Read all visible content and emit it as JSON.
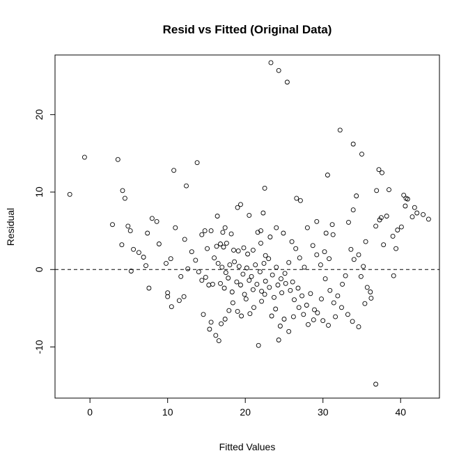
{
  "chart_data": {
    "type": "scatter",
    "title": "Resid vs Fitted (Original Data)",
    "xlabel": "Fitted Values",
    "ylabel": "Residual",
    "xlim": [
      -4.5,
      45
    ],
    "ylim": [
      -16.6,
      27.7
    ],
    "xticks": [
      0,
      10,
      20,
      30,
      40
    ],
    "yticks": [
      -10,
      0,
      10,
      20
    ],
    "reference_line": {
      "y": 0,
      "style": "dashed"
    },
    "grid": false,
    "legend": "none",
    "marker": "open-circle",
    "points": [
      [
        -2.6,
        9.7
      ],
      [
        -0.7,
        14.5
      ],
      [
        3.6,
        14.2
      ],
      [
        4.2,
        10.2
      ],
      [
        4.5,
        9.2
      ],
      [
        2.9,
        5.8
      ],
      [
        4.1,
        3.2
      ],
      [
        4.9,
        5.6
      ],
      [
        5.2,
        5.0
      ],
      [
        5.6,
        2.6
      ],
      [
        6.3,
        2.2
      ],
      [
        6.9,
        1.6
      ],
      [
        7.2,
        0.5
      ],
      [
        5.3,
        -0.2
      ],
      [
        7.6,
        -2.4
      ],
      [
        8.0,
        6.6
      ],
      [
        8.6,
        6.2
      ],
      [
        8.9,
        3.3
      ],
      [
        7.4,
        4.7
      ],
      [
        9.8,
        0.8
      ],
      [
        10.0,
        -3.0
      ],
      [
        10.0,
        -3.5
      ],
      [
        10.5,
        -4.8
      ],
      [
        10.4,
        1.4
      ],
      [
        10.8,
        12.8
      ],
      [
        12.4,
        10.8
      ],
      [
        13.8,
        13.8
      ],
      [
        11.0,
        5.4
      ],
      [
        11.7,
        -0.9
      ],
      [
        11.5,
        -4.0
      ],
      [
        12.1,
        -3.5
      ],
      [
        12.6,
        0.1
      ],
      [
        13.1,
        2.3
      ],
      [
        12.2,
        3.9
      ],
      [
        13.6,
        1.2
      ],
      [
        14.4,
        4.5
      ],
      [
        14.8,
        5.0
      ],
      [
        15.1,
        2.7
      ],
      [
        14.0,
        -0.3
      ],
      [
        14.4,
        -1.4
      ],
      [
        14.9,
        -1.0
      ],
      [
        15.3,
        -2.0
      ],
      [
        15.8,
        -1.9
      ],
      [
        14.6,
        -5.8
      ],
      [
        15.6,
        -6.8
      ],
      [
        15.4,
        -7.7
      ],
      [
        16.2,
        -8.5
      ],
      [
        16.6,
        -9.2
      ],
      [
        16.9,
        -7.0
      ],
      [
        17.4,
        -6.4
      ],
      [
        17.9,
        -5.3
      ],
      [
        18.4,
        -4.3
      ],
      [
        19.0,
        -5.4
      ],
      [
        19.5,
        -6.0
      ],
      [
        20.1,
        -3.8
      ],
      [
        20.6,
        -5.7
      ],
      [
        21.1,
        -4.9
      ],
      [
        21.7,
        -9.8
      ],
      [
        22.1,
        -4.1
      ],
      [
        22.5,
        -3.2
      ],
      [
        19.0,
        8.0
      ],
      [
        19.4,
        8.4
      ],
      [
        20.5,
        7.0
      ],
      [
        16.4,
        6.9
      ],
      [
        15.6,
        5.0
      ],
      [
        17.4,
        5.4
      ],
      [
        17.1,
        4.8
      ],
      [
        18.2,
        4.6
      ],
      [
        17.6,
        3.4
      ],
      [
        16.3,
        3.0
      ],
      [
        16.8,
        3.3
      ],
      [
        17.2,
        2.9
      ],
      [
        18.5,
        2.5
      ],
      [
        19.1,
        2.4
      ],
      [
        19.8,
        2.8
      ],
      [
        20.3,
        2.0
      ],
      [
        21.0,
        2.5
      ],
      [
        21.6,
        4.8
      ],
      [
        22.0,
        3.4
      ],
      [
        22.6,
        1.8
      ],
      [
        16.0,
        1.5
      ],
      [
        16.5,
        0.8
      ],
      [
        17.0,
        0.3
      ],
      [
        17.5,
        -0.4
      ],
      [
        18.0,
        0.6
      ],
      [
        18.6,
        1.0
      ],
      [
        19.2,
        0.4
      ],
      [
        19.7,
        -0.6
      ],
      [
        20.2,
        0.2
      ],
      [
        20.8,
        -0.9
      ],
      [
        21.3,
        0.6
      ],
      [
        21.9,
        -0.3
      ],
      [
        22.4,
        0.8
      ],
      [
        23.0,
        1.4
      ],
      [
        23.5,
        -0.7
      ],
      [
        24.0,
        0.3
      ],
      [
        24.6,
        -1.2
      ],
      [
        25.1,
        -0.5
      ],
      [
        25.6,
        0.9
      ],
      [
        26.1,
        -1.6
      ],
      [
        16.8,
        -1.8
      ],
      [
        17.3,
        -2.4
      ],
      [
        17.8,
        -1.1
      ],
      [
        18.3,
        -2.9
      ],
      [
        18.9,
        -1.6
      ],
      [
        19.4,
        -2.0
      ],
      [
        19.9,
        -3.2
      ],
      [
        20.5,
        -1.4
      ],
      [
        21.0,
        -2.6
      ],
      [
        21.5,
        -1.9
      ],
      [
        22.1,
        -2.8
      ],
      [
        22.6,
        -1.5
      ],
      [
        23.1,
        -2.3
      ],
      [
        23.7,
        -3.6
      ],
      [
        24.2,
        -2.0
      ],
      [
        24.7,
        -3.0
      ],
      [
        25.2,
        -1.8
      ],
      [
        25.8,
        -2.7
      ],
      [
        26.3,
        -3.9
      ],
      [
        26.8,
        -2.4
      ],
      [
        27.3,
        -3.4
      ],
      [
        27.9,
        -4.6
      ],
      [
        28.4,
        -3.1
      ],
      [
        28.9,
        -5.2
      ],
      [
        23.4,
        -6.0
      ],
      [
        23.9,
        -5.1
      ],
      [
        24.5,
        -7.3
      ],
      [
        25.0,
        -6.4
      ],
      [
        25.6,
        -8.0
      ],
      [
        26.2,
        -6.1
      ],
      [
        26.9,
        -4.9
      ],
      [
        27.5,
        -5.8
      ],
      [
        28.1,
        -7.1
      ],
      [
        28.8,
        -6.5
      ],
      [
        24.3,
        -9.1
      ],
      [
        22.5,
        10.5
      ],
      [
        23.3,
        26.7
      ],
      [
        24.3,
        25.7
      ],
      [
        25.4,
        24.2
      ],
      [
        26.6,
        9.2
      ],
      [
        27.1,
        8.9
      ],
      [
        22.3,
        7.3
      ],
      [
        22.0,
        5.0
      ],
      [
        23.2,
        4.2
      ],
      [
        24.0,
        5.4
      ],
      [
        24.9,
        4.7
      ],
      [
        26.0,
        3.6
      ],
      [
        26.5,
        2.7
      ],
      [
        27.0,
        1.5
      ],
      [
        27.6,
        0.3
      ],
      [
        28.0,
        5.4
      ],
      [
        28.7,
        3.1
      ],
      [
        29.2,
        1.9
      ],
      [
        29.7,
        0.6
      ],
      [
        30.2,
        2.3
      ],
      [
        30.8,
        1.4
      ],
      [
        31.3,
        4.5
      ],
      [
        29.2,
        6.2
      ],
      [
        30.4,
        4.7
      ],
      [
        31.2,
        5.8
      ],
      [
        30.6,
        12.2
      ],
      [
        32.2,
        18.0
      ],
      [
        33.9,
        16.2
      ],
      [
        35.0,
        14.9
      ],
      [
        33.3,
        6.1
      ],
      [
        34.3,
        9.5
      ],
      [
        33.9,
        7.7
      ],
      [
        35.5,
        3.6
      ],
      [
        34.6,
        1.9
      ],
      [
        35.2,
        0.4
      ],
      [
        33.6,
        2.6
      ],
      [
        34.0,
        1.3
      ],
      [
        34.9,
        -0.9
      ],
      [
        35.7,
        -2.3
      ],
      [
        36.2,
        -3.7
      ],
      [
        32.9,
        -0.8
      ],
      [
        32.5,
        -1.9
      ],
      [
        31.9,
        -3.4
      ],
      [
        31.4,
        -4.3
      ],
      [
        30.9,
        -2.7
      ],
      [
        30.3,
        -1.2
      ],
      [
        29.8,
        -3.8
      ],
      [
        29.3,
        -5.6
      ],
      [
        30.0,
        -6.6
      ],
      [
        30.7,
        -7.2
      ],
      [
        31.6,
        -6.1
      ],
      [
        32.4,
        -4.9
      ],
      [
        33.2,
        -5.8
      ],
      [
        33.8,
        -6.7
      ],
      [
        34.6,
        -7.4
      ],
      [
        35.4,
        -4.4
      ],
      [
        36.1,
        -2.9
      ],
      [
        36.8,
        5.6
      ],
      [
        37.3,
        6.4
      ],
      [
        37.5,
        6.7
      ],
      [
        36.9,
        10.2
      ],
      [
        37.2,
        12.9
      ],
      [
        37.6,
        12.5
      ],
      [
        38.5,
        10.3
      ],
      [
        39.1,
        -0.8
      ],
      [
        39.4,
        2.7
      ],
      [
        39.6,
        5.1
      ],
      [
        40.1,
        5.5
      ],
      [
        40.6,
        8.2
      ],
      [
        40.4,
        9.6
      ],
      [
        40.7,
        9.2
      ],
      [
        40.9,
        9.1
      ],
      [
        41.8,
        8.0
      ],
      [
        42.1,
        7.3
      ],
      [
        42.9,
        7.1
      ],
      [
        43.6,
        6.5
      ],
      [
        36.8,
        -14.8
      ],
      [
        39.0,
        4.3
      ],
      [
        38.2,
        6.9
      ],
      [
        41.5,
        6.8
      ],
      [
        37.8,
        3.2
      ]
    ]
  }
}
